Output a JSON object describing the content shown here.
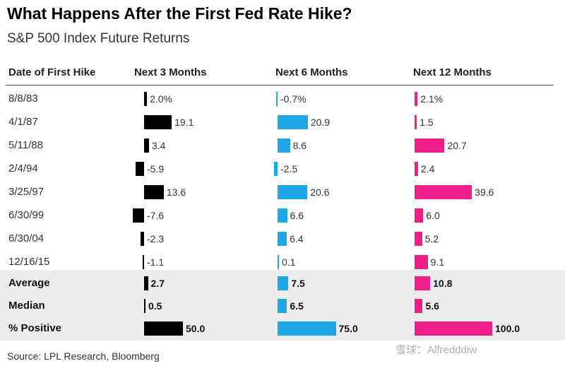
{
  "chart_data": {
    "type": "table",
    "title": "What Happens After the First Fed Rate Hike?",
    "subtitle": "S&P 500 Index Future Returns",
    "row_header": "Date of First Hike",
    "columns": [
      {
        "name": "Next 3 Months",
        "color": "#000000"
      },
      {
        "name": "Next 6 Months",
        "color": "#1ea7e6"
      },
      {
        "name": "Next 12 Months",
        "color": "#ee1e8a"
      }
    ],
    "rows": [
      {
        "label": "8/8/83",
        "values": [
          2.0,
          -0.7,
          2.1
        ],
        "display": [
          "2.0%",
          "-0.7%",
          "2.1%"
        ],
        "summary": false
      },
      {
        "label": "4/1/87",
        "values": [
          19.1,
          20.9,
          1.5
        ],
        "display": [
          "19.1",
          "20.9",
          "1.5"
        ],
        "summary": false
      },
      {
        "label": "5/11/88",
        "values": [
          3.4,
          8.6,
          20.7
        ],
        "display": [
          "3.4",
          "8.6",
          "20.7"
        ],
        "summary": false
      },
      {
        "label": "2/4/94",
        "values": [
          -5.9,
          -2.5,
          2.4
        ],
        "display": [
          "-5.9",
          "-2.5",
          "2.4"
        ],
        "summary": false
      },
      {
        "label": "3/25/97",
        "values": [
          13.6,
          20.6,
          39.6
        ],
        "display": [
          "13.6",
          "20.6",
          "39.6"
        ],
        "summary": false
      },
      {
        "label": "6/30/99",
        "values": [
          -7.6,
          6.6,
          6.0
        ],
        "display": [
          "-7.6",
          "6.6",
          "6.0"
        ],
        "summary": false
      },
      {
        "label": "6/30/04",
        "values": [
          -2.3,
          6.4,
          5.2
        ],
        "display": [
          "-2.3",
          "6.4",
          "5.2"
        ],
        "summary": false
      },
      {
        "label": "12/16/15",
        "values": [
          -1.1,
          0.1,
          9.1
        ],
        "display": [
          "-1.1",
          "0.1",
          "9.1"
        ],
        "summary": false
      },
      {
        "label": "Average",
        "values": [
          2.7,
          7.5,
          10.8
        ],
        "display": [
          "2.7",
          "7.5",
          "10.8"
        ],
        "summary": true
      },
      {
        "label": "Median",
        "values": [
          0.5,
          6.5,
          5.6
        ],
        "display": [
          "0.5",
          "6.5",
          "5.6"
        ],
        "summary": true
      },
      {
        "label": "% Positive",
        "values": [
          50.0,
          75.0,
          100.0
        ],
        "display": [
          "50.0",
          "75.0",
          "100.0"
        ],
        "summary": true,
        "percent_row": true
      }
    ],
    "source": "Source: LPL Research, Bloomberg"
  },
  "watermark": "雪球：Alfredddiw"
}
